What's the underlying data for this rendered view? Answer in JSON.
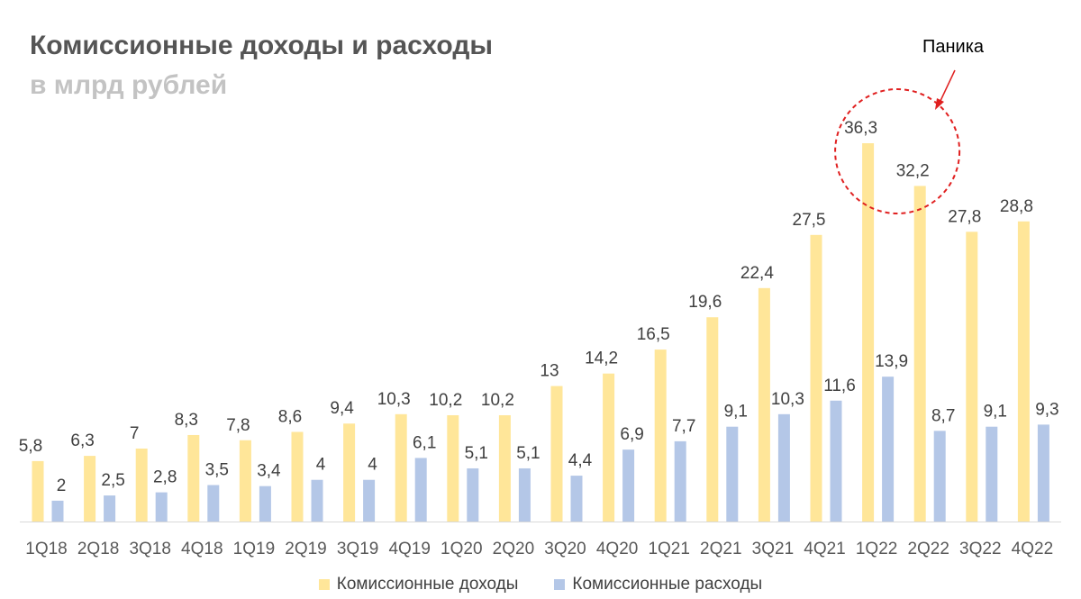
{
  "chart_data": {
    "type": "bar",
    "title": "Комиссионные доходы и расходы",
    "subtitle": "в млрд рублей",
    "categories": [
      "1Q18",
      "2Q18",
      "3Q18",
      "4Q18",
      "1Q19",
      "2Q19",
      "3Q19",
      "4Q19",
      "1Q20",
      "2Q20",
      "3Q20",
      "4Q20",
      "1Q21",
      "2Q21",
      "3Q21",
      "4Q21",
      "1Q22",
      "2Q22",
      "3Q22",
      "4Q22"
    ],
    "series": [
      {
        "name": "Комиссионные доходы",
        "color": "#ffe699",
        "values": [
          5.8,
          6.3,
          7,
          8.3,
          7.8,
          8.6,
          9.4,
          10.3,
          10.2,
          10.2,
          13,
          14.2,
          16.5,
          19.6,
          22.4,
          27.5,
          36.3,
          32.2,
          27.8,
          28.8
        ],
        "labels": [
          "5,8",
          "6,3",
          "7",
          "8,3",
          "7,8",
          "8,6",
          "9,4",
          "10,3",
          "10,2",
          "10,2",
          "13",
          "14,2",
          "16,5",
          "19,6",
          "22,4",
          "27,5",
          "36,3",
          "32,2",
          "27,8",
          "28,8"
        ]
      },
      {
        "name": "Комиссионные расходы",
        "color": "#b4c7e7",
        "values": [
          2,
          2.5,
          2.8,
          3.5,
          3.4,
          4,
          4,
          6.1,
          5.1,
          5.1,
          4.4,
          6.9,
          7.7,
          9.1,
          10.3,
          11.6,
          13.9,
          8.7,
          9.1,
          9.3
        ],
        "labels": [
          "2",
          "2,5",
          "2,8",
          "3,5",
          "3,4",
          "4",
          "4",
          "6,1",
          "5,1",
          "5,1",
          "4,4",
          "6,9",
          "7,7",
          "9,1",
          "10,3",
          "11,6",
          "13,9",
          "8,7",
          "9,1",
          "9,3"
        ]
      }
    ],
    "xlabel": "",
    "ylabel": "",
    "ylim": [
      0,
      36.3
    ],
    "grid": false,
    "legend": "bottom-center",
    "annotation": {
      "text": "Паника",
      "target_category": "1Q22",
      "color": "#e02020"
    }
  }
}
